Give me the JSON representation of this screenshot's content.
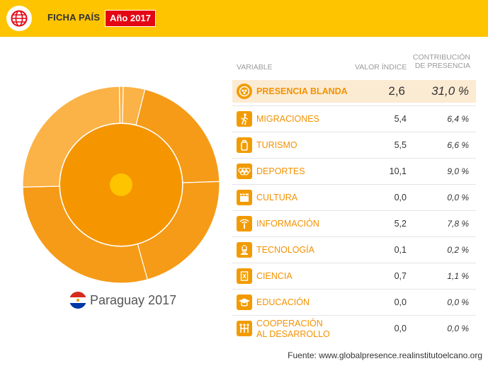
{
  "header": {
    "title": "FICHA PAÍS",
    "year_badge": "Año 2017"
  },
  "country": {
    "name": "Paraguay 2017",
    "flag_icon": "paraguay-flag-icon"
  },
  "colors": {
    "header_bg": "#ffc400",
    "badge_bg": "#e30613",
    "accent": "#f39200",
    "highlight_row": "#fcebd3"
  },
  "table": {
    "headers": {
      "variable": "VARIABLE",
      "valor": "VALOR ÍNDICE",
      "contribucion_1": "CONTRIBUCIÓN",
      "contribucion_2": "DE PRESENCIA"
    },
    "rows": [
      {
        "icon": "soft-power-icon",
        "label": "PRESENCIA BLANDA",
        "value": "2,6",
        "contribution": "31,0 %"
      },
      {
        "icon": "migration-icon",
        "label": "MIGRACIONES",
        "value": "5,4",
        "contribution": "6,4 %"
      },
      {
        "icon": "tourism-icon",
        "label": "TURISMO",
        "value": "5,5",
        "contribution": "6,6 %"
      },
      {
        "icon": "olympic-rings-icon",
        "label": "DEPORTES",
        "value": "10,1",
        "contribution": "9,0 %"
      },
      {
        "icon": "clapperboard-icon",
        "label": "CULTURA",
        "value": "0,0",
        "contribution": "0,0 %"
      },
      {
        "icon": "information-icon",
        "label": "INFORMACIÓN",
        "value": "5,2",
        "contribution": "7,8 %"
      },
      {
        "icon": "technology-icon",
        "label": "TECNOLOGÍA",
        "value": "0,1",
        "contribution": "0,2 %"
      },
      {
        "icon": "science-icon",
        "label": "CIENCIA",
        "value": "0,7",
        "contribution": "1,1 %"
      },
      {
        "icon": "graduation-cap-icon",
        "label": "EDUCACIÓN",
        "value": "0,0",
        "contribution": "0,0 %"
      },
      {
        "icon": "cooperation-icon",
        "label": "COOPERACIÓN",
        "label_line2": "AL DESARROLLO",
        "value": "0,0",
        "contribution": "0,0 %"
      }
    ]
  },
  "source": "Fuente: www.globalpresence.realinstitutoelcano.org",
  "chart_data": {
    "type": "pie",
    "inner_ring": {
      "name": "Presencia blanda",
      "value": 100
    },
    "outer_ring": {
      "categories": [
        "Migraciones",
        "Turismo",
        "Deportes",
        "Información",
        "Tecnología",
        "Ciencia"
      ],
      "values": [
        6.4,
        6.6,
        9.0,
        7.8,
        0.2,
        1.1
      ],
      "colors": [
        "#f59b17",
        "#f59b17",
        "#f59b17",
        "#fbb246",
        "#fbb246",
        "#fbb246"
      ]
    }
  }
}
